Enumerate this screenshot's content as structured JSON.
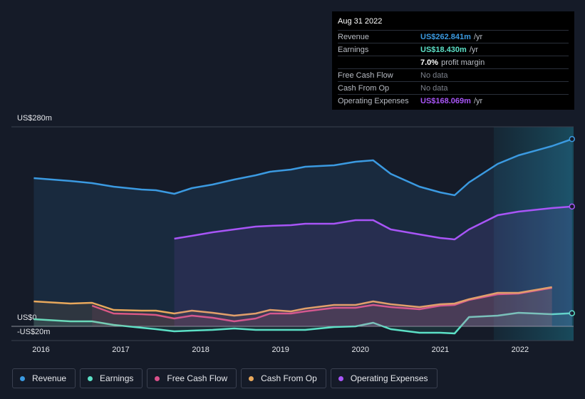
{
  "chart_data": {
    "type": "line",
    "ylabels_note": null,
    "x": [
      2015.91,
      2016.37,
      2016.64,
      2016.91,
      2017.26,
      2017.44,
      2017.67,
      2017.89,
      2018.15,
      2018.42,
      2018.69,
      2018.87,
      2019.13,
      2019.31,
      2019.67,
      2019.94,
      2020.16,
      2020.38,
      2020.74,
      2021.0,
      2021.18,
      2021.36,
      2021.72,
      2021.98,
      2022.4,
      2022.65
    ],
    "series": [
      {
        "name": "Revenue",
        "color": "#3b9ae1",
        "values": [
          208,
          204,
          201,
          196,
          192,
          191,
          186,
          194,
          199,
          206,
          212,
          217,
          220,
          224,
          226,
          231,
          233,
          214,
          196,
          188,
          184,
          202,
          228,
          240,
          253,
          262.841
        ]
      },
      {
        "name": "Earnings",
        "color": "#5ce0c6",
        "values": [
          10,
          7,
          7,
          2,
          -2,
          -4,
          -7,
          -6,
          -5,
          -3,
          -5,
          -5,
          -5,
          -5,
          -1,
          0,
          5,
          -4,
          -9,
          -9,
          -10,
          13,
          15,
          19,
          17,
          18.43
        ]
      },
      {
        "name": "Free Cash Flow",
        "color": "#d9508a",
        "values": [
          null,
          null,
          29,
          18,
          17,
          16,
          11,
          15,
          12,
          7,
          11,
          18,
          18,
          21,
          26,
          26,
          30,
          27,
          24,
          29,
          30,
          37,
          45,
          46,
          54,
          null
        ]
      },
      {
        "name": "Cash From Op",
        "color": "#e8a85c",
        "values": [
          35,
          32,
          33,
          23,
          22,
          22,
          18,
          22,
          19,
          15,
          18,
          23,
          21,
          25,
          30,
          30,
          35,
          31,
          27,
          31,
          32,
          38,
          47,
          47,
          55,
          null
        ]
      },
      {
        "name": "Operating Expenses",
        "color": "#a855f7",
        "values": [
          null,
          null,
          null,
          null,
          null,
          null,
          123,
          127,
          132,
          136,
          140,
          141,
          142,
          144,
          144,
          149,
          149,
          136,
          129,
          124,
          122,
          136,
          156,
          161,
          166,
          168.069
        ]
      }
    ],
    "xlim": [
      2015.63,
      2022.67
    ],
    "xticks": [
      2016,
      2017,
      2018,
      2019,
      2020,
      2021,
      2022
    ],
    "ylim": [
      -20,
      280
    ],
    "yticks": [
      {
        "value": 280,
        "label": "US$280m"
      },
      {
        "value": 0,
        "label": "US$0"
      },
      {
        "value": -20,
        "label": "-US$20m"
      }
    ],
    "highlight_xlim": [
      2021.67,
      2022.67
    ],
    "grid": true
  },
  "tooltip": {
    "date": "Aug 31 2022",
    "rows": [
      {
        "label": "Revenue",
        "value": "US$262.841m",
        "unit": "/yr",
        "color": "#3b9ae1"
      },
      {
        "label": "Earnings",
        "value": "US$18.430m",
        "unit": "/yr",
        "color": "#5ce0c6"
      },
      {
        "label": null,
        "value": "7.0%",
        "unit": "profit margin",
        "color": "#ffffff"
      },
      {
        "label": "Free Cash Flow",
        "value": "No data",
        "unit": null,
        "color": "#7d828c"
      },
      {
        "label": "Cash From Op",
        "value": "No data",
        "unit": null,
        "color": "#7d828c"
      },
      {
        "label": "Operating Expenses",
        "value": "US$168.069m",
        "unit": "/yr",
        "color": "#a855f7"
      }
    ]
  }
}
